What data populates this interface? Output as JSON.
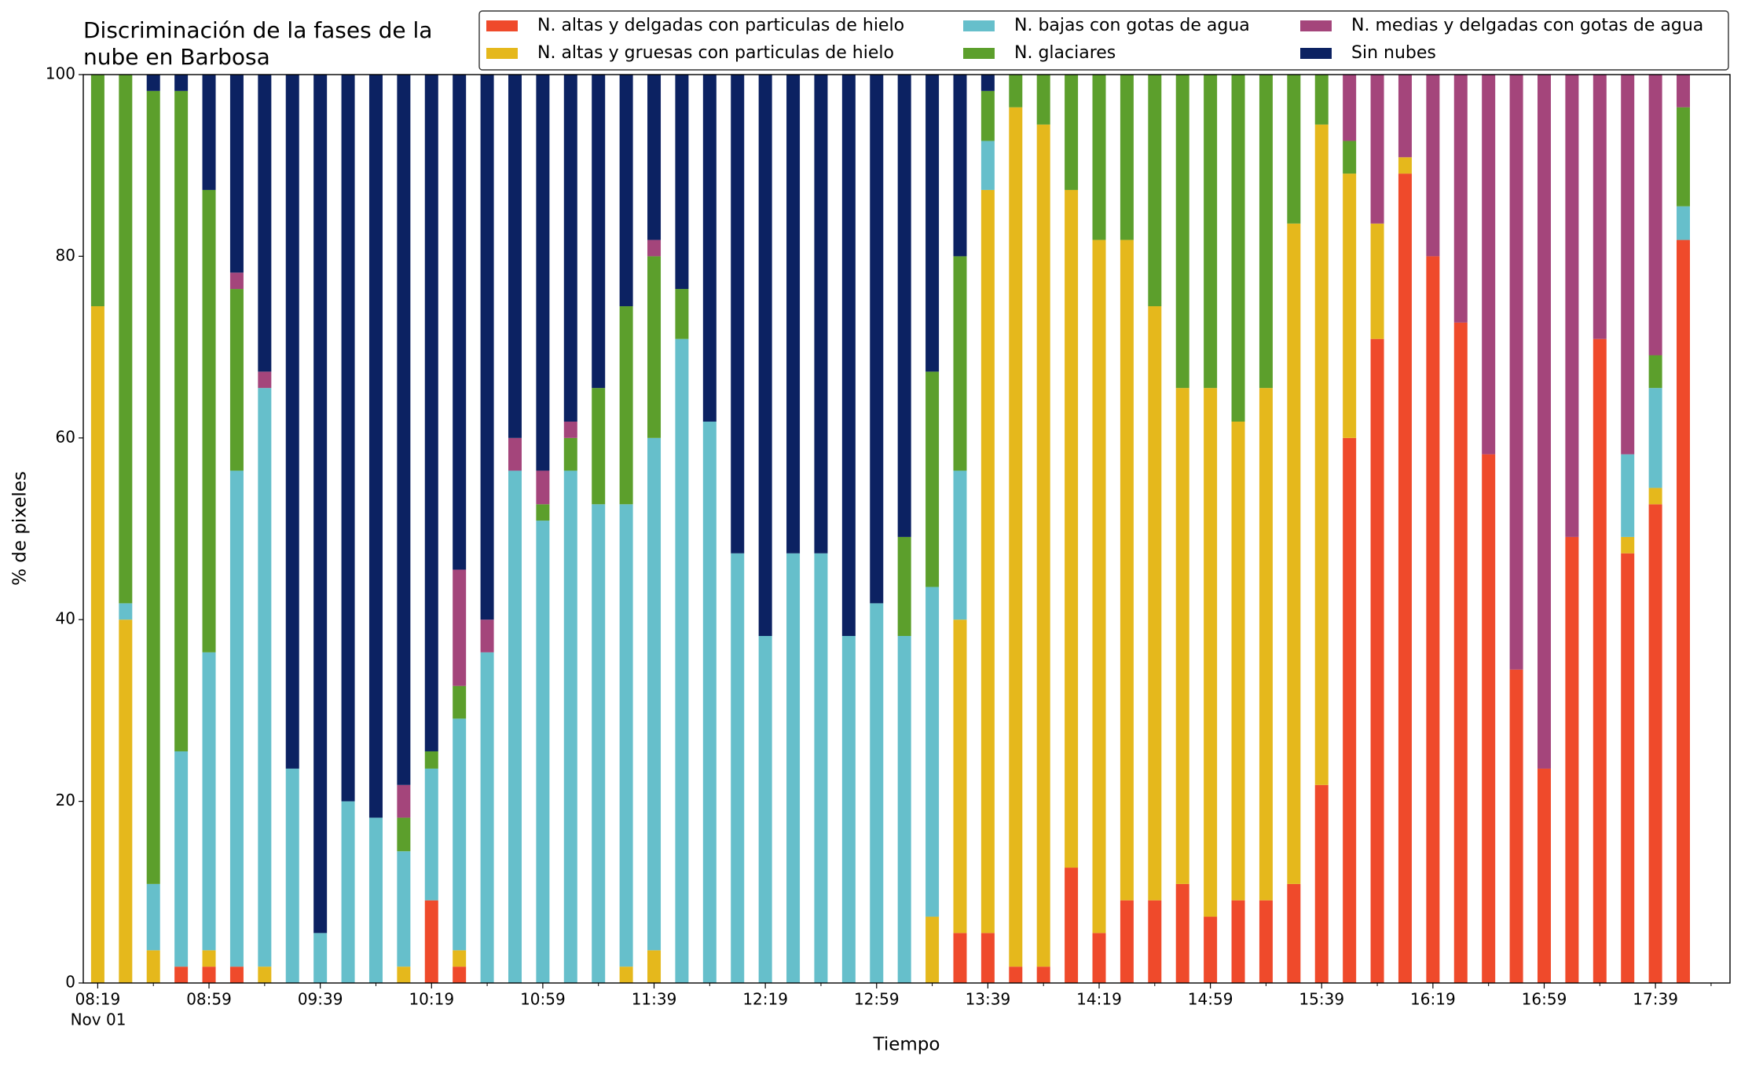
{
  "chart_data": {
    "type": "stacked_bar",
    "title": [
      "Discriminación de la fases de la",
      "nube en Barbosa"
    ],
    "x_label": "Tiempo",
    "y_label": "% de pixeles",
    "x_sublabel": "Nov 01",
    "categories": [
      "08:19",
      null,
      null,
      null,
      "08:59",
      null,
      null,
      null,
      "09:39",
      null,
      null,
      null,
      "10:19",
      null,
      null,
      null,
      "10:59",
      null,
      null,
      null,
      "11:39",
      null,
      null,
      null,
      "12:19",
      null,
      null,
      null,
      "12:59",
      null,
      null,
      null,
      "13:39",
      null,
      null,
      null,
      "14:19",
      null,
      null,
      null,
      "14:59",
      null,
      null,
      null,
      "15:39",
      null,
      null,
      null,
      "16:19",
      null,
      null,
      null,
      "16:59",
      null,
      null,
      null,
      "17:39",
      null
    ],
    "ylim": [
      0,
      100
    ],
    "yticks": [
      0,
      20,
      40,
      60,
      80,
      100
    ],
    "series": [
      {
        "name": "N. altas y delgadas con particulas de hielo",
        "color": "#ef4a2b",
        "values": [
          0,
          0,
          0,
          1.8,
          1.8,
          1.8,
          0,
          0,
          0,
          0,
          0,
          0,
          9.1,
          1.8,
          0,
          0,
          0,
          0,
          0,
          0,
          0,
          0,
          0,
          0,
          0,
          0,
          0,
          0,
          0,
          0,
          0,
          5.5,
          5.5,
          1.8,
          1.8,
          12.7,
          5.5,
          9.1,
          9.1,
          10.9,
          7.3,
          9.1,
          9.1,
          10.9,
          21.8,
          60,
          70.9,
          89.1,
          80,
          72.7,
          58.2,
          34.5,
          23.6,
          49.1,
          70.9,
          47.3,
          52.7,
          81.8
        ]
      },
      {
        "name": "N. altas y gruesas con particulas de hielo",
        "color": "#e5b81c",
        "values": [
          74.5,
          40,
          3.6,
          0,
          1.8,
          0,
          1.8,
          0,
          0,
          0,
          0,
          1.8,
          0,
          1.8,
          0,
          0,
          0,
          0,
          0,
          1.8,
          3.6,
          0,
          0,
          0,
          0,
          0,
          0,
          0,
          0,
          0,
          7.3,
          34.5,
          81.8,
          94.6,
          92.7,
          74.6,
          76.3,
          72.7,
          65.4,
          54.6,
          58.2,
          52.7,
          56.4,
          72.7,
          72.7,
          29.1,
          12.7,
          1.8,
          0,
          0,
          0,
          0,
          0,
          0,
          0,
          1.8,
          1.8,
          0
        ]
      },
      {
        "name": "N. bajas con gotas de agua",
        "color": "#66bfcb",
        "values": [
          0,
          1.8,
          7.3,
          23.7,
          32.8,
          54.6,
          63.7,
          23.6,
          5.5,
          20,
          18.2,
          12.7,
          14.5,
          25.5,
          36.4,
          56.4,
          50.9,
          56.4,
          52.7,
          50.9,
          56.4,
          70.9,
          61.8,
          47.3,
          38.2,
          47.3,
          47.3,
          38.2,
          41.8,
          38.2,
          36.3,
          16.4,
          5.4,
          0,
          0,
          0,
          0,
          0,
          0,
          0,
          0,
          0,
          0,
          0,
          0,
          0,
          0,
          0,
          0,
          0,
          0,
          0,
          0,
          0,
          0,
          9.1,
          11,
          3.7
        ]
      },
      {
        "name": "N. glaciares",
        "color": "#5c9f2c",
        "values": [
          25.5,
          58.2,
          87.3,
          72.7,
          50.9,
          20,
          0,
          0,
          0,
          0,
          0,
          3.7,
          1.9,
          3.6,
          0,
          0,
          1.8,
          3.6,
          12.8,
          21.8,
          20,
          5.5,
          0,
          0,
          0,
          0,
          0,
          0,
          0,
          10.9,
          23.7,
          23.6,
          5.5,
          3.6,
          5.5,
          12.7,
          18.2,
          18.2,
          25.5,
          34.5,
          34.5,
          38.2,
          34.5,
          16.4,
          5.5,
          3.6,
          0,
          0,
          0,
          0,
          0,
          0,
          0,
          0,
          0,
          0,
          3.6,
          10.9
        ]
      },
      {
        "name": "N. medias y delgadas con gotas de agua",
        "color": "#a4457b",
        "values": [
          0,
          0,
          0,
          0,
          0,
          1.8,
          1.8,
          0,
          0,
          0,
          0,
          3.6,
          0,
          12.8,
          3.6,
          3.6,
          3.7,
          1.8,
          0,
          0,
          1.8,
          0,
          0,
          0,
          0,
          0,
          0,
          0,
          0,
          0,
          0,
          0,
          0,
          0,
          0,
          0,
          0,
          0,
          0,
          0,
          0,
          0,
          0,
          0,
          0,
          7.3,
          16.4,
          9.1,
          20,
          27.3,
          41.8,
          65.5,
          76.4,
          50.9,
          29.1,
          41.8,
          30.9,
          3.6
        ]
      },
      {
        "name": "Sin nubes",
        "color": "#0c2262",
        "values": [
          0,
          0,
          1.8,
          1.8,
          12.7,
          21.8,
          32.7,
          76.4,
          94.5,
          80,
          81.8,
          78.2,
          74.5,
          54.5,
          60,
          40,
          43.6,
          38.2,
          34.5,
          25.5,
          18.2,
          23.6,
          38.2,
          52.7,
          61.8,
          52.7,
          52.7,
          61.8,
          58.2,
          50.9,
          32.7,
          20,
          1.8,
          0,
          0,
          0,
          0,
          0,
          0,
          0,
          0,
          0,
          0,
          0,
          0,
          0,
          0,
          0,
          0,
          0,
          0,
          0,
          0,
          0,
          0,
          0,
          0,
          0
        ]
      }
    ]
  }
}
